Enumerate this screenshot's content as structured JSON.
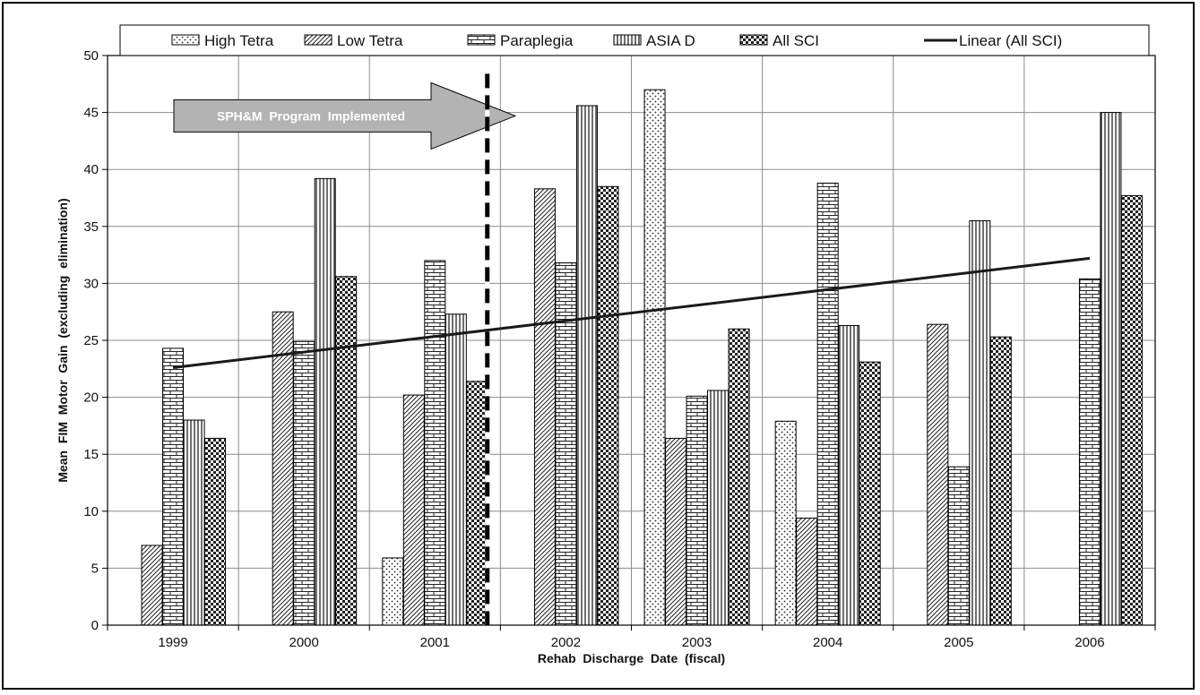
{
  "chart_data": {
    "type": "bar",
    "categories": [
      "1999",
      "2000",
      "2001",
      "2002",
      "2003",
      "2004",
      "2005",
      "2006"
    ],
    "series": [
      {
        "name": "High Tetra",
        "pattern": "dots",
        "values": [
          null,
          null,
          5.9,
          null,
          47.0,
          17.9,
          null,
          null
        ]
      },
      {
        "name": "Low Tetra",
        "pattern": "diagonal",
        "values": [
          7.0,
          27.5,
          20.2,
          38.3,
          16.4,
          9.4,
          26.4,
          null
        ]
      },
      {
        "name": "Paraplegia",
        "pattern": "brick",
        "values": [
          24.3,
          24.9,
          32.0,
          31.8,
          20.1,
          38.8,
          13.9,
          30.4
        ]
      },
      {
        "name": "ASIA D",
        "pattern": "vertical",
        "values": [
          18.0,
          39.2,
          27.3,
          45.6,
          20.6,
          26.3,
          35.5,
          45.0
        ]
      },
      {
        "name": "All SCI",
        "pattern": "checker",
        "values": [
          16.4,
          30.6,
          21.4,
          38.5,
          26.0,
          23.1,
          25.3,
          37.7
        ]
      }
    ],
    "trendline": {
      "name": "Linear (All SCI)",
      "start": 22.6,
      "end": 32.2
    },
    "annotation": "SPH&M  Program  Implemented",
    "xlabel": "Rehab  Discharge  Date  (fiscal)",
    "ylabel": "Mean  FIM  Motor  Gain  (excluding  elimination)",
    "ylim": [
      0,
      50
    ],
    "yticks": [
      0,
      5,
      10,
      15,
      20,
      25,
      30,
      35,
      40,
      45,
      50
    ],
    "grid": true,
    "legend_position": "top"
  }
}
